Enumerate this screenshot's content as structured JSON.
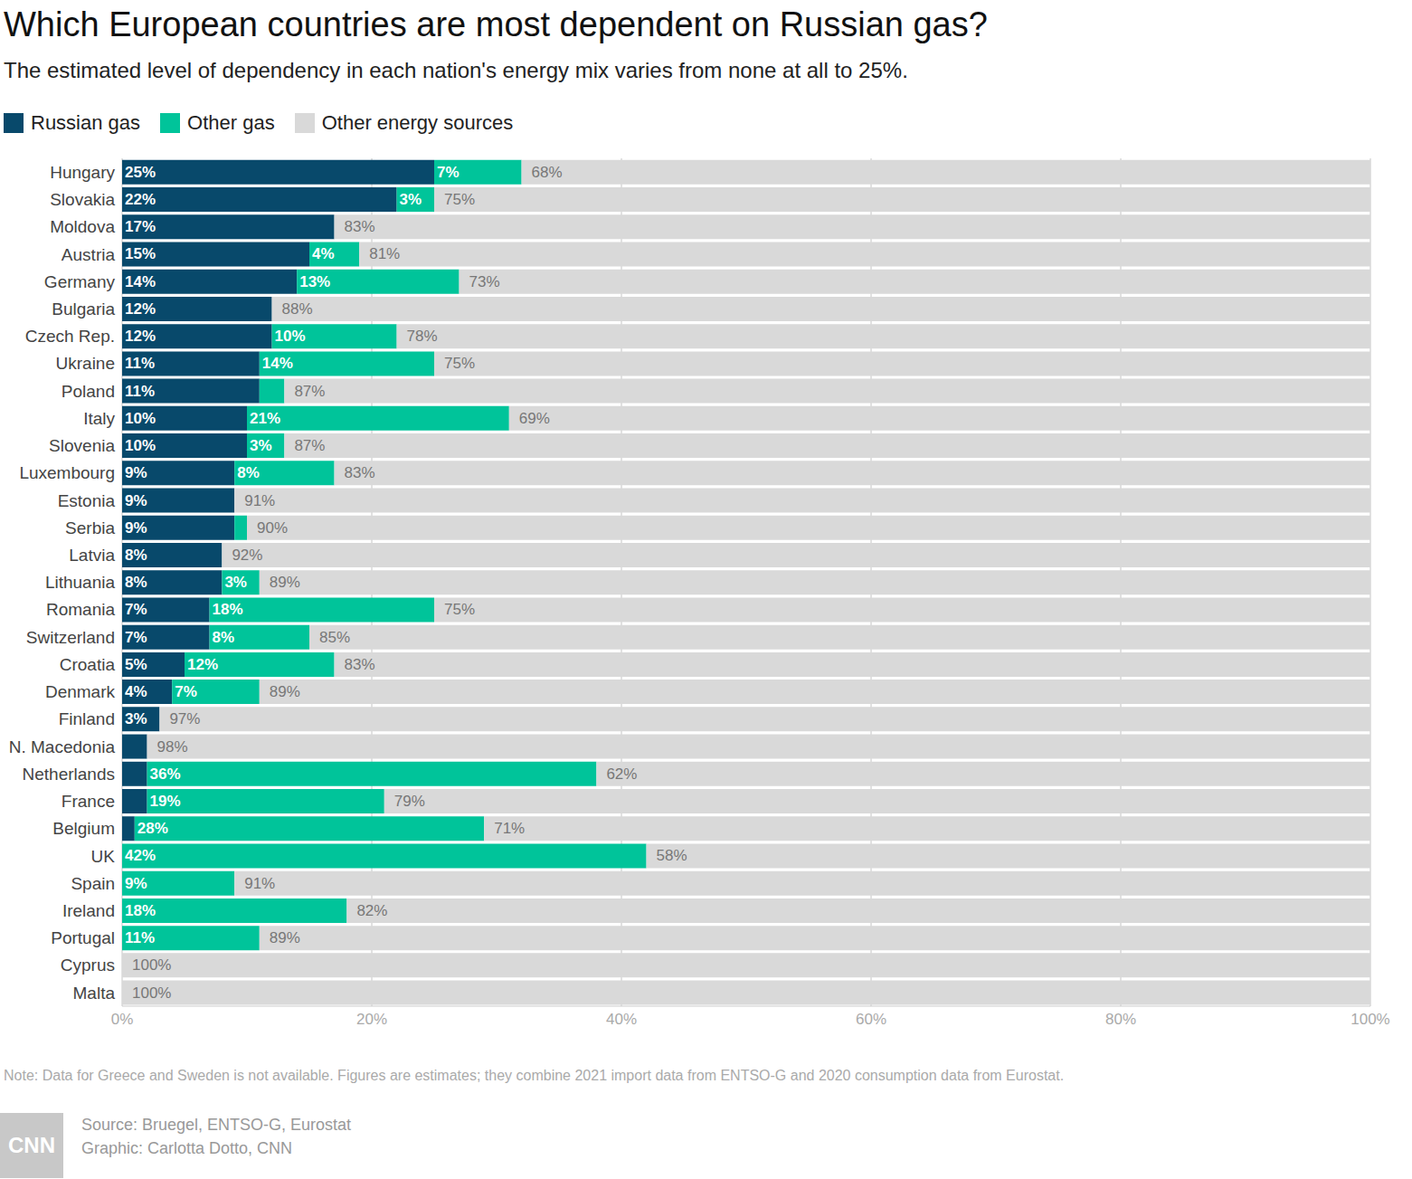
{
  "chart_data": {
    "type": "bar",
    "title": "Which European countries are most dependent on Russian gas?",
    "subtitle": "The estimated level of dependency in each nation's energy mix varies from none at all to 25%.",
    "orientation": "horizontal",
    "stacked": true,
    "data_labels": true,
    "grid": true,
    "legend": "top-left",
    "categories": [
      "Hungary",
      "Slovakia",
      "Moldova",
      "Austria",
      "Germany",
      "Bulgaria",
      "Czech Rep.",
      "Ukraine",
      "Poland",
      "Italy",
      "Slovenia",
      "Luxembourg",
      "Estonia",
      "Serbia",
      "Latvia",
      "Lithuania",
      "Romania",
      "Switzerland",
      "Croatia",
      "Denmark",
      "Finland",
      "N. Macedonia",
      "Netherlands",
      "France",
      "Belgium",
      "UK",
      "Spain",
      "Ireland",
      "Portugal",
      "Cyprus",
      "Malta"
    ],
    "series": [
      {
        "name": "Russian gas",
        "color": "#08496b",
        "values": [
          25,
          22,
          17,
          15,
          14,
          12,
          12,
          11,
          11,
          10,
          10,
          9,
          9,
          9,
          8,
          8,
          7,
          7,
          5,
          4,
          3,
          2,
          2,
          2,
          1,
          0,
          0,
          0,
          0,
          0,
          0
        ],
        "value_labels": [
          "25%",
          "22%",
          "17%",
          "15%",
          "14%",
          "12%",
          "12%",
          "11%",
          "11%",
          "10%",
          "10%",
          "9%",
          "9%",
          "9%",
          "8%",
          "8%",
          "7%",
          "7%",
          "5%",
          "4%",
          "3%",
          null,
          null,
          null,
          null,
          null,
          null,
          null,
          null,
          null,
          null
        ]
      },
      {
        "name": "Other gas",
        "color": "#00c49a",
        "values": [
          7,
          3,
          0,
          4,
          13,
          0,
          10,
          14,
          2,
          21,
          3,
          8,
          0,
          1,
          0,
          3,
          18,
          8,
          12,
          7,
          0,
          0,
          36,
          19,
          28,
          42,
          9,
          18,
          11,
          0,
          0
        ],
        "value_labels": [
          "7%",
          "3%",
          null,
          "4%",
          "13%",
          null,
          "10%",
          "14%",
          null,
          "21%",
          "3%",
          "8%",
          null,
          null,
          null,
          "3%",
          "18%",
          "8%",
          "12%",
          "7%",
          null,
          null,
          "36%",
          "19%",
          "28%",
          "42%",
          "9%",
          "18%",
          "11%",
          null,
          null
        ]
      },
      {
        "name": "Other energy sources",
        "color": "#d9d9d9",
        "values": [
          68,
          75,
          83,
          81,
          73,
          88,
          78,
          75,
          87,
          69,
          87,
          83,
          91,
          90,
          92,
          89,
          75,
          85,
          83,
          89,
          97,
          98,
          62,
          79,
          71,
          58,
          91,
          82,
          89,
          100,
          100
        ],
        "value_labels": [
          "68%",
          "75%",
          "83%",
          "81%",
          "73%",
          "88%",
          "78%",
          "75%",
          "87%",
          "69%",
          "87%",
          "83%",
          "91%",
          "90%",
          "92%",
          "89%",
          "75%",
          "85%",
          "83%",
          "89%",
          "97%",
          "98%",
          "62%",
          "79%",
          "71%",
          "58%",
          "91%",
          "82%",
          "89%",
          "100%",
          "100%"
        ]
      }
    ],
    "xlim": [
      0,
      100
    ],
    "xticks": [
      {
        "value": 0,
        "label": "0%"
      },
      {
        "value": 20,
        "label": "20%"
      },
      {
        "value": 40,
        "label": "40%"
      },
      {
        "value": 60,
        "label": "60%"
      },
      {
        "value": 80,
        "label": "80%"
      },
      {
        "value": 100,
        "label": "100%"
      }
    ],
    "note": "Note: Data for Greece and Sweden is not available. Figures are estimates; they combine 2021 import data from ENTSO-G and 2020 consumption data from Eurostat.",
    "source": "Source: Bruegel, ENTSO-G, Eurostat",
    "credit": "Graphic: Carlotta Dotto, CNN",
    "logo": "CNN"
  }
}
